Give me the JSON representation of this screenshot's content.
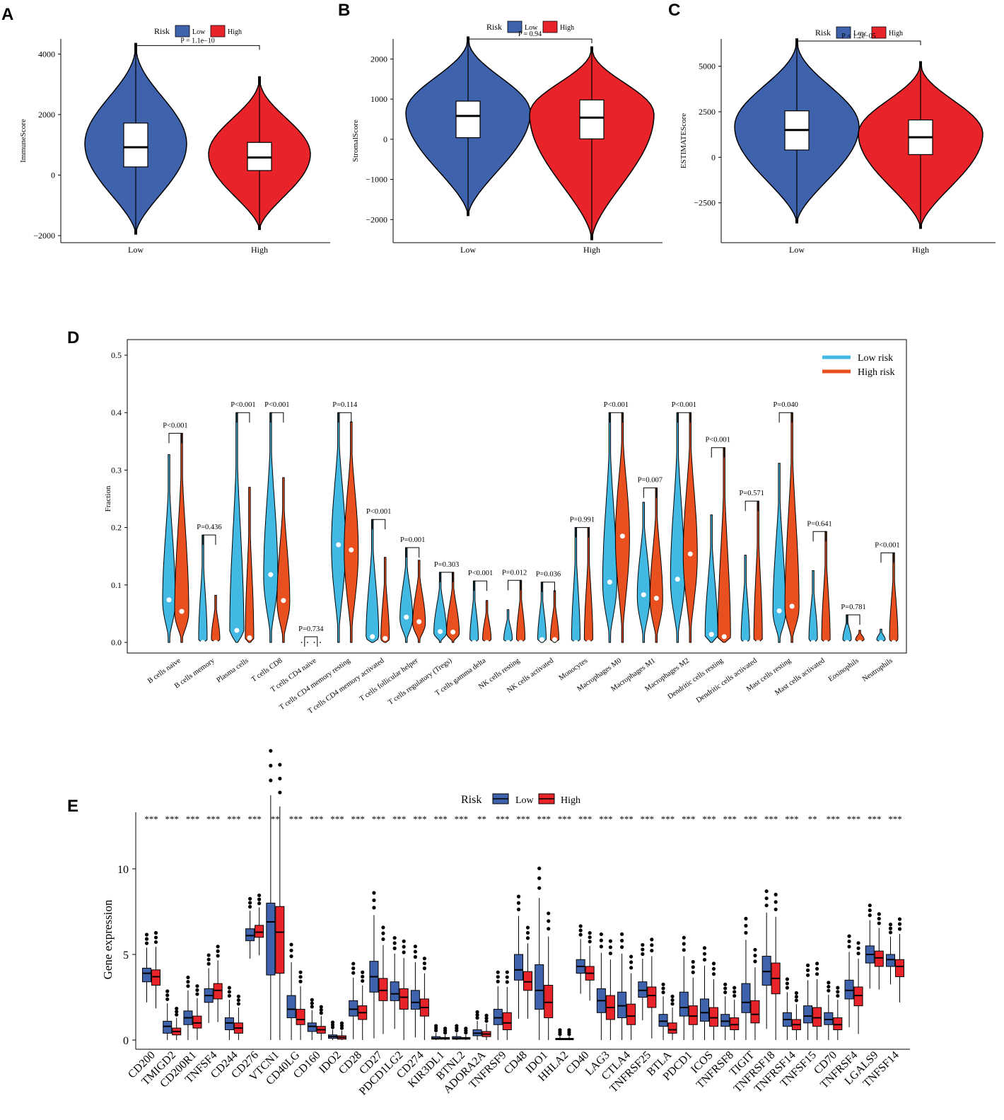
{
  "colors": {
    "low": "#3f62ad",
    "high": "#e8232a",
    "low_light": "#42b9e3",
    "high_light": "#e8501f",
    "axis": "#000000"
  },
  "chart_data": [
    {
      "type": "violin",
      "panel": "A",
      "legend": {
        "title": "Risk",
        "items": [
          "Low",
          "High"
        ]
      },
      "ylabel": "ImmuneScore",
      "yticks": [
        -2000,
        0,
        2000,
        4000
      ],
      "ylim": [
        -2000,
        4500
      ],
      "categories": [
        "Low",
        "High"
      ],
      "p_label": "P = 1.1e−10",
      "series": [
        {
          "name": "Low",
          "min": -1950,
          "q1": 270,
          "median": 920,
          "q3": 1720,
          "max": 4350
        },
        {
          "name": "High",
          "min": -1800,
          "q1": 150,
          "median": 580,
          "q3": 1080,
          "max": 3250
        }
      ]
    },
    {
      "type": "violin",
      "panel": "B",
      "legend": {
        "title": "Risk",
        "items": [
          "Low",
          "High"
        ]
      },
      "ylabel": "StromalScore",
      "yticks": [
        -2000,
        -1000,
        0,
        1000,
        2000
      ],
      "ylim": [
        -2400,
        2500
      ],
      "categories": [
        "Low",
        "High"
      ],
      "p_label": "P = 0.94",
      "series": [
        {
          "name": "Low",
          "min": -1900,
          "q1": 40,
          "median": 580,
          "q3": 950,
          "max": 2550
        },
        {
          "name": "High",
          "min": -2500,
          "q1": 10,
          "median": 540,
          "q3": 980,
          "max": 2300
        }
      ]
    },
    {
      "type": "violin",
      "panel": "C",
      "legend": {
        "title": "Risk",
        "items": [
          "Low",
          "High"
        ]
      },
      "ylabel": "ESTIMATEScore",
      "yticks": [
        -2500,
        0,
        2500,
        5000
      ],
      "ylim": [
        -4300,
        6500
      ],
      "categories": [
        "Low",
        "High"
      ],
      "p_label": "P = 1.2e−05",
      "series": [
        {
          "name": "Low",
          "min": -3600,
          "q1": 400,
          "median": 1500,
          "q3": 2550,
          "max": 6500
        },
        {
          "name": "High",
          "min": -3900,
          "q1": 150,
          "median": 1100,
          "q3": 2050,
          "max": 5250
        }
      ]
    },
    {
      "type": "violin",
      "panel": "D",
      "ylabel": "Fraction",
      "yticks": [
        "0.0",
        "0.1",
        "0.2",
        "0.3",
        "0.4",
        "0.5"
      ],
      "ylim": [
        0,
        0.5
      ],
      "legend": [
        "Low risk",
        "High risk"
      ],
      "categories": [
        "B cells naive",
        "B cells memory",
        "Plasma cells",
        "T cells CD8",
        "T cells CD4 naive",
        "T cells CD4 memory resting",
        "T cells CD4 memory activated",
        "T cells follicular helper",
        "T cells regulatory (Tregs)",
        "T cells gamma delta",
        "NK cells resting",
        "NK cells activated",
        "Monocytes",
        "Macrophages M0",
        "Macrophages M1",
        "Macrophages M2",
        "Dendritic cells resting",
        "Dendritic cells activated",
        "Mast cells resting",
        "Mast cells activated",
        "Eosinophils",
        "Neutrophils"
      ],
      "pvalues": [
        "P<0.001",
        "P=0.436",
        "P<0.001",
        "P<0.001",
        "P=0.734",
        "P=0.114",
        "P<0.001",
        "P=0.001",
        "P=0.303",
        "P<0.001",
        "P=0.012",
        "P=0.036",
        "P=0.991",
        "P<0.001",
        "P=0.007",
        "P<0.001",
        "P<0.001",
        "P=0.571",
        "P=0.040",
        "P=0.641",
        "P=0.781",
        "P<0.001"
      ],
      "low_median": [
        0.074,
        0.0,
        0.021,
        0.118,
        0.0,
        0.17,
        0.01,
        0.044,
        0.019,
        0.0,
        0.0,
        0.005,
        0.0,
        0.105,
        0.083,
        0.11,
        0.014,
        0.0,
        0.055,
        0.0,
        0.0,
        0.0
      ],
      "low_max": [
        0.327,
        0.187,
        0.4,
        0.4,
        0.0,
        0.4,
        0.214,
        0.165,
        0.122,
        0.107,
        0.057,
        0.105,
        0.2,
        0.4,
        0.244,
        0.4,
        0.222,
        0.152,
        0.312,
        0.125,
        0.048,
        0.023
      ],
      "high_median": [
        0.054,
        0.0,
        0.008,
        0.073,
        0.0,
        0.161,
        0.007,
        0.036,
        0.018,
        0.0,
        0.0,
        0.005,
        0.0,
        0.185,
        0.077,
        0.154,
        0.01,
        0.0,
        0.063,
        0.0,
        0.0,
        0.0
      ],
      "high_max": [
        0.364,
        0.082,
        0.27,
        0.287,
        0.0,
        0.384,
        0.148,
        0.143,
        0.122,
        0.073,
        0.108,
        0.09,
        0.2,
        0.4,
        0.269,
        0.4,
        0.339,
        0.246,
        0.4,
        0.193,
        0.021,
        0.156
      ]
    },
    {
      "type": "box",
      "panel": "E",
      "legend": {
        "title": "Risk",
        "items": [
          "Low",
          "High"
        ]
      },
      "ylabel": "Gene expression",
      "yticks": [
        0,
        5,
        10
      ],
      "ylim": [
        -0.3,
        13
      ],
      "categories": [
        "CD200",
        "TMIGD2",
        "CD200R1",
        "TNFSF4",
        "CD244",
        "CD276",
        "VTCN1",
        "CD40LG",
        "CD160",
        "IDO2",
        "CD28",
        "CD27",
        "PDCD1LG2",
        "CD274",
        "KIR3DL1",
        "BTNL2",
        "ADORA2A",
        "TNFRSF9",
        "CD48",
        "IDO1",
        "HHLA2",
        "CD40",
        "LAG3",
        "CTLA4",
        "TNFRSF25",
        "BTLA",
        "PDCD1",
        "ICOS",
        "TNFRSF8",
        "TIGIT",
        "TNFRSF18",
        "TNFRSF14",
        "TNFSF15",
        "CD70",
        "TNFRSF4",
        "LGALS9",
        "TNFSF14"
      ],
      "significance": [
        "***",
        "***",
        "***",
        "***",
        "***",
        "***",
        "**",
        "***",
        "***",
        "***",
        "***",
        "***",
        "***",
        "***",
        "***",
        "***",
        "**",
        "***",
        "***",
        "***",
        "***",
        "***",
        "***",
        "***",
        "***",
        "***",
        "***",
        "***",
        "***",
        "***",
        "***",
        "***",
        "**",
        "***",
        "***",
        "***",
        "***"
      ],
      "low_q": [
        [
          3.4,
          3.9,
          4.2
        ],
        [
          0.4,
          0.8,
          1.1
        ],
        [
          0.9,
          1.3,
          1.7
        ],
        [
          2.2,
          2.6,
          3.0
        ],
        [
          0.6,
          1.0,
          1.3
        ],
        [
          5.8,
          6.1,
          6.5
        ],
        [
          3.8,
          6.9,
          8.0
        ],
        [
          1.3,
          1.8,
          2.6
        ],
        [
          0.5,
          0.8,
          1.0
        ],
        [
          0.1,
          0.2,
          0.3
        ],
        [
          1.4,
          1.8,
          2.3
        ],
        [
          2.8,
          3.7,
          4.6
        ],
        [
          2.3,
          2.7,
          3.4
        ],
        [
          1.8,
          2.2,
          2.9
        ],
        [
          0.05,
          0.1,
          0.2
        ],
        [
          0.05,
          0.1,
          0.2
        ],
        [
          0.25,
          0.4,
          0.6
        ],
        [
          0.9,
          1.3,
          1.8
        ],
        [
          3.5,
          4.1,
          5.0
        ],
        [
          1.8,
          2.9,
          4.4
        ],
        [
          0.02,
          0.05,
          0.1
        ],
        [
          3.9,
          4.3,
          4.7
        ],
        [
          1.6,
          2.3,
          3.0
        ],
        [
          1.3,
          2.0,
          2.8
        ],
        [
          2.5,
          2.9,
          3.4
        ],
        [
          0.8,
          1.1,
          1.5
        ],
        [
          1.4,
          1.9,
          2.8
        ],
        [
          1.1,
          1.6,
          2.4
        ],
        [
          0.8,
          1.1,
          1.5
        ],
        [
          1.6,
          2.2,
          3.3
        ],
        [
          3.2,
          4.0,
          4.9
        ],
        [
          0.8,
          1.2,
          1.6
        ],
        [
          1.0,
          1.4,
          2.0
        ],
        [
          0.9,
          1.2,
          1.6
        ],
        [
          2.4,
          2.9,
          3.5
        ],
        [
          4.5,
          5.0,
          5.5
        ],
        [
          4.3,
          4.7,
          5.0
        ]
      ],
      "high_q": [
        [
          3.2,
          3.7,
          4.1
        ],
        [
          0.3,
          0.5,
          0.7
        ],
        [
          0.7,
          1.0,
          1.4
        ],
        [
          2.4,
          2.9,
          3.3
        ],
        [
          0.4,
          0.7,
          1.0
        ],
        [
          6.0,
          6.3,
          6.7
        ],
        [
          3.9,
          6.3,
          7.8
        ],
        [
          0.9,
          1.2,
          1.8
        ],
        [
          0.4,
          0.6,
          0.8
        ],
        [
          0.05,
          0.15,
          0.25
        ],
        [
          1.2,
          1.6,
          2.0
        ],
        [
          2.3,
          2.9,
          3.6
        ],
        [
          1.8,
          2.5,
          3.0
        ],
        [
          1.4,
          1.9,
          2.4
        ],
        [
          0.05,
          0.1,
          0.15
        ],
        [
          0.05,
          0.1,
          0.15
        ],
        [
          0.2,
          0.35,
          0.5
        ],
        [
          0.6,
          1.0,
          1.6
        ],
        [
          2.9,
          3.4,
          4.0
        ],
        [
          1.3,
          2.2,
          3.2
        ],
        [
          0.02,
          0.05,
          0.1
        ],
        [
          3.5,
          3.9,
          4.3
        ],
        [
          1.2,
          1.9,
          2.6
        ],
        [
          0.9,
          1.4,
          2.1
        ],
        [
          1.9,
          2.6,
          3.1
        ],
        [
          0.4,
          0.6,
          1.0
        ],
        [
          0.9,
          1.4,
          2.0
        ],
        [
          0.8,
          1.3,
          1.9
        ],
        [
          0.6,
          0.9,
          1.3
        ],
        [
          1.0,
          1.5,
          2.3
        ],
        [
          2.7,
          3.6,
          4.5
        ],
        [
          0.6,
          0.9,
          1.2
        ],
        [
          0.8,
          1.3,
          1.9
        ],
        [
          0.6,
          0.9,
          1.3
        ],
        [
          2.0,
          2.6,
          3.1
        ],
        [
          4.3,
          4.8,
          5.2
        ],
        [
          3.7,
          4.3,
          4.7
        ]
      ]
    }
  ]
}
